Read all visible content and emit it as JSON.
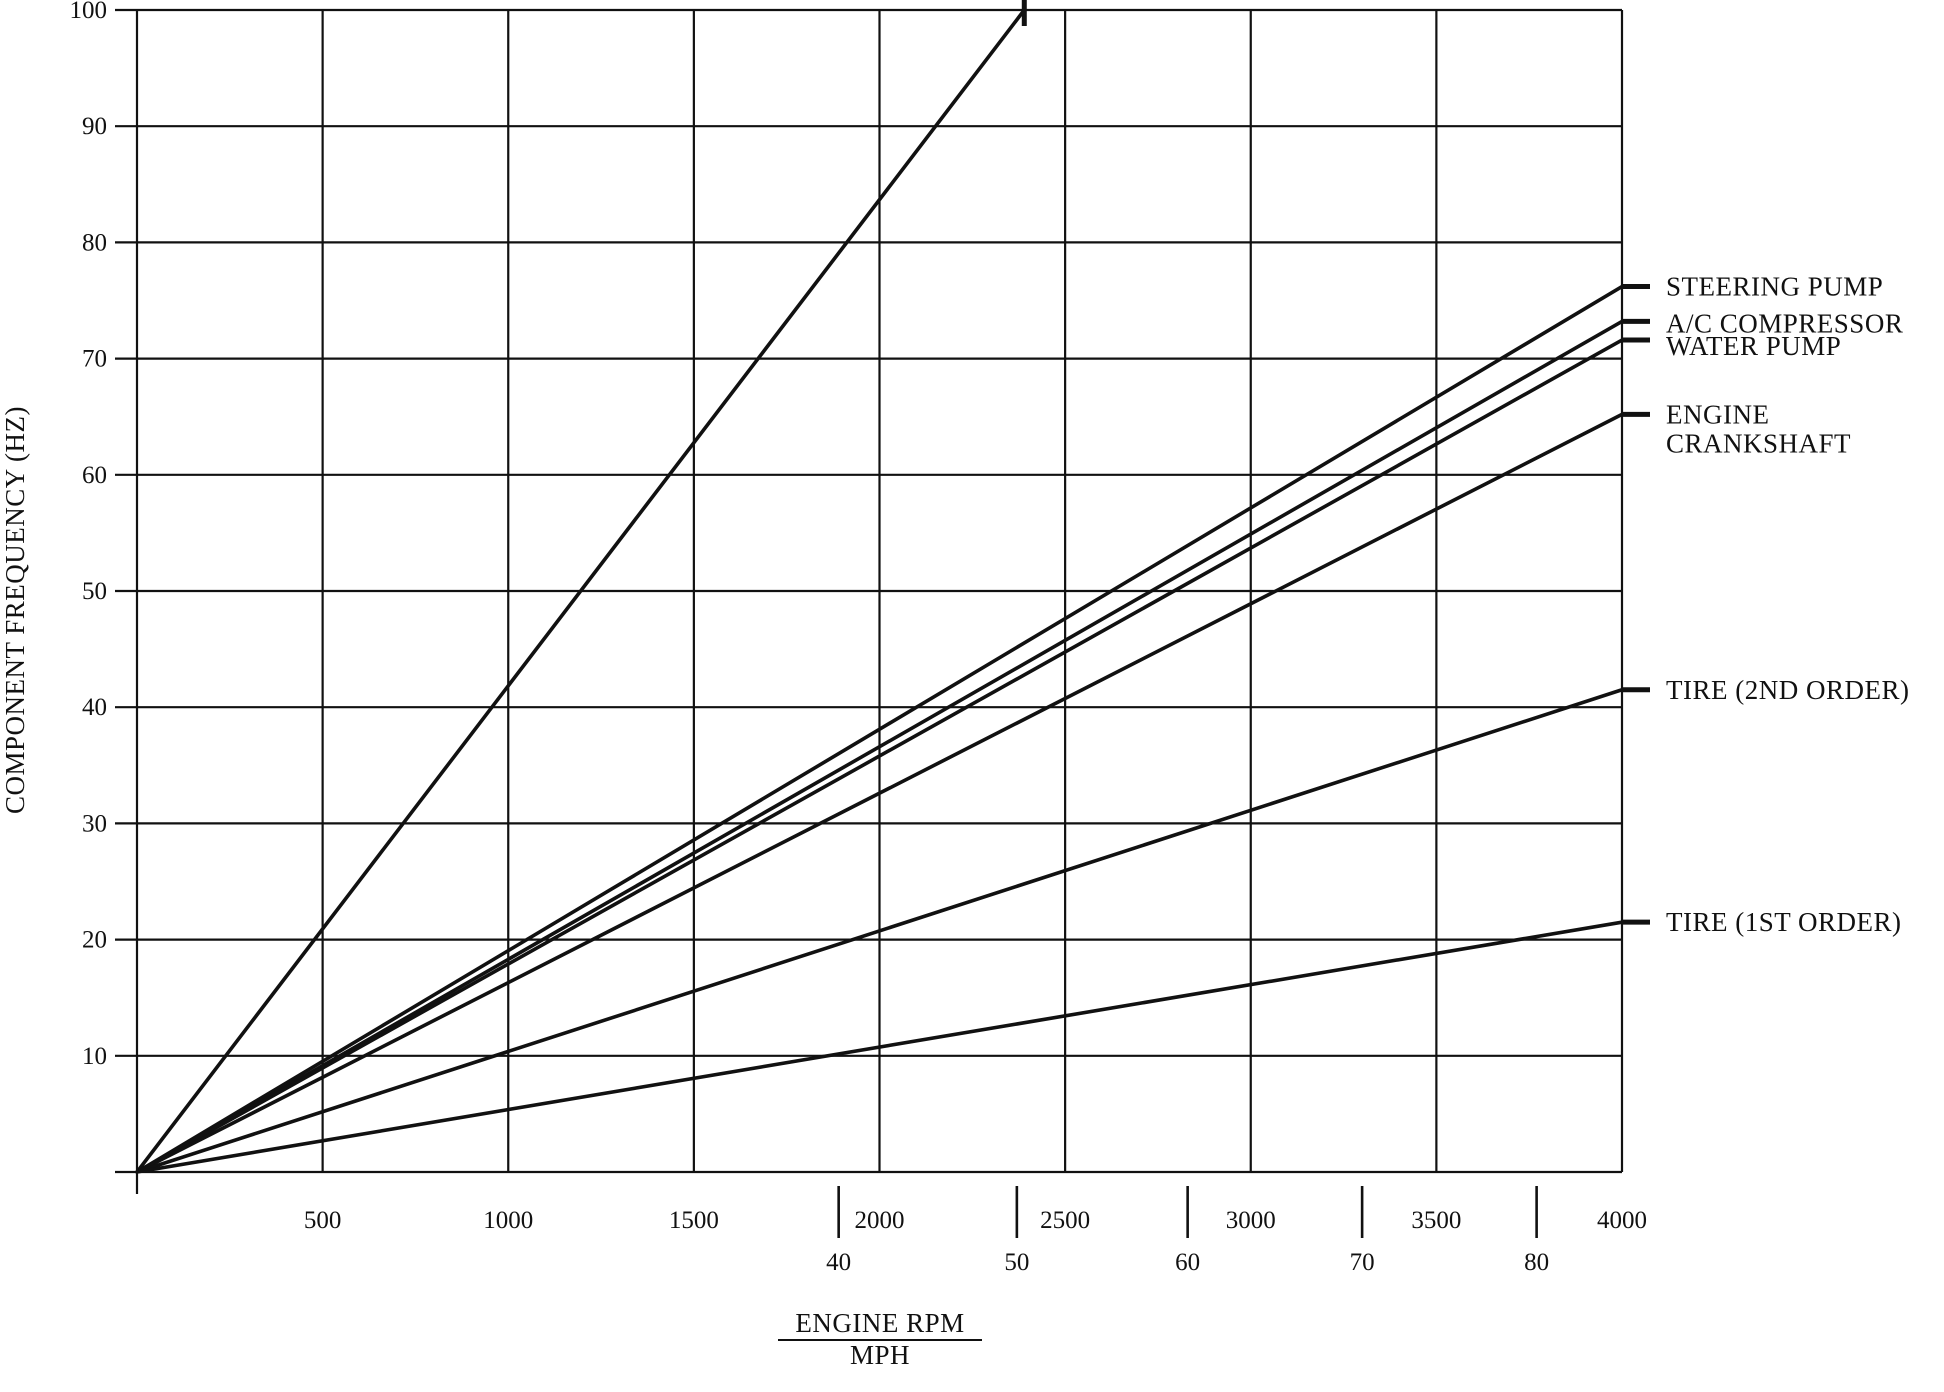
{
  "chart_data": {
    "type": "line",
    "title": "",
    "ylabel": "COMPONENT FREQUENCY (HZ)",
    "xlabel": "ENGINE RPM",
    "xlabel2": "MPH",
    "xlim": [
      0,
      4000
    ],
    "ylim": [
      0,
      100
    ],
    "grid": true,
    "legend": "right (direct labels)",
    "y_ticks": [
      "10",
      "20",
      "30",
      "40",
      "50",
      "60",
      "70",
      "80",
      "90",
      "100"
    ],
    "x_ticks_rpm": [
      "500",
      "1000",
      "1500",
      "2000",
      "2500",
      "3000",
      "3500",
      "4000"
    ],
    "x_ticks_mph": [
      {
        "label": "40",
        "rpm": 1890
      },
      {
        "label": "50",
        "rpm": 2370
      },
      {
        "label": "60",
        "rpm": 2830
      },
      {
        "label": "70",
        "rpm": 3300
      },
      {
        "label": "80",
        "rpm": 3770
      }
    ],
    "series": [
      {
        "x": [
          0,
          2390
        ],
        "y": [
          0,
          100
        ]
      },
      {
        "name": "STEERING PUMP",
        "x": [
          0,
          4000
        ],
        "y": [
          0,
          76.2
        ]
      },
      {
        "name": "A/C COMPRESSOR",
        "x": [
          0,
          4000
        ],
        "y": [
          0,
          73.2
        ]
      },
      {
        "name": "WATER PUMP",
        "x": [
          0,
          4000
        ],
        "y": [
          0,
          71.6
        ]
      },
      {
        "name": "ENGINE CRANKSHAFT",
        "name_lines": [
          "ENGINE",
          "CRANKSHAFT"
        ],
        "x": [
          0,
          4000
        ],
        "y": [
          0,
          65.2
        ]
      },
      {
        "name": "TIRE (2ND ORDER)",
        "x": [
          0,
          4000
        ],
        "y": [
          0,
          41.5
        ]
      },
      {
        "name": "TIRE (1ST ORDER)",
        "x": [
          0,
          4000
        ],
        "y": [
          0,
          21.5
        ]
      }
    ]
  }
}
